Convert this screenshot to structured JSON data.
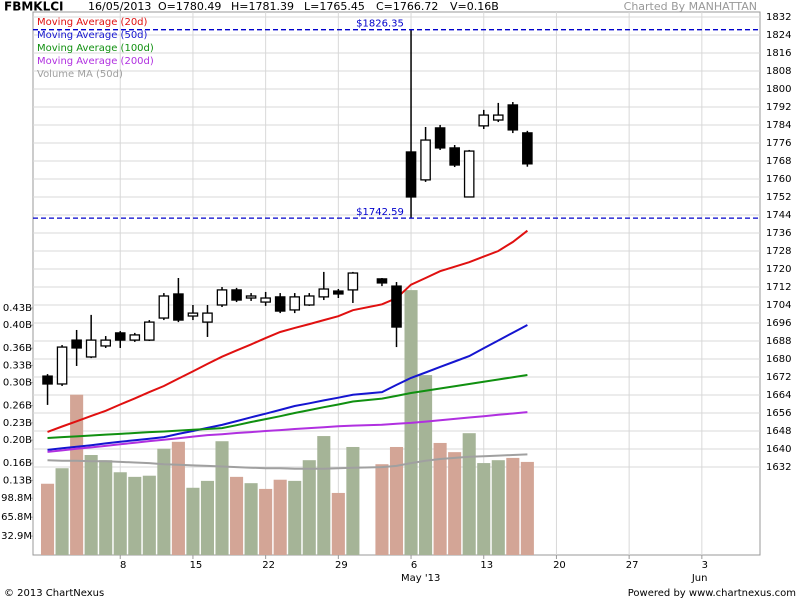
{
  "chart_data": {
    "type": "candlestick",
    "title": "FBMKLCI",
    "header_items": [
      "16/05/2013",
      "O=1780.49",
      "H=1781.39",
      "L=1765.45",
      "C=1766.72",
      "V=0.16B"
    ],
    "credit": "Charted By MANHATTAN",
    "footer_left": "© 2013 ChartNexus",
    "footer_right": "Powered by www.chartnexus.com",
    "x": [
      "2013-04-01",
      "2013-04-02",
      "2013-04-03",
      "2013-04-04",
      "2013-04-05",
      "2013-04-08",
      "2013-04-09",
      "2013-04-10",
      "2013-04-11",
      "2013-04-12",
      "2013-04-15",
      "2013-04-16",
      "2013-04-17",
      "2013-04-18",
      "2013-04-19",
      "2013-04-22",
      "2013-04-23",
      "2013-04-24",
      "2013-04-25",
      "2013-04-26",
      "2013-04-29",
      "2013-04-30",
      "2013-05-02",
      "2013-05-03",
      "2013-05-06",
      "2013-05-07",
      "2013-05-08",
      "2013-05-09",
      "2013-05-10",
      "2013-05-13",
      "2013-05-14",
      "2013-05-15",
      "2013-05-16"
    ],
    "open": [
      1672.4,
      1668.9,
      1688.4,
      1680.9,
      1685.8,
      1691.6,
      1688.4,
      1688.4,
      1698.2,
      1708.9,
      1699.1,
      1696.4,
      1704.0,
      1710.7,
      1707.1,
      1705.3,
      1707.6,
      1701.8,
      1704.0,
      1707.6,
      1710.2,
      1710.7,
      1715.6,
      1712.4,
      1772.0,
      1759.6,
      1782.7,
      1773.8,
      1752.0,
      1783.6,
      1786.2,
      1792.9,
      1780.49
    ],
    "high": [
      1673.3,
      1686.2,
      1692.9,
      1699.6,
      1690.2,
      1692.4,
      1691.6,
      1697.3,
      1709.3,
      1716.0,
      1704.0,
      1704.0,
      1712.0,
      1711.6,
      1709.3,
      1709.8,
      1709.3,
      1709.3,
      1709.3,
      1718.7,
      1711.1,
      1718.7,
      1716.0,
      1714.2,
      1826.35,
      1783.1,
      1784.0,
      1775.1,
      1772.9,
      1790.7,
      1793.8,
      1794.2,
      1781.39
    ],
    "low": [
      1659.6,
      1668.0,
      1676.9,
      1680.4,
      1684.9,
      1684.9,
      1687.6,
      1688.0,
      1697.3,
      1696.4,
      1697.3,
      1689.8,
      1703.1,
      1705.3,
      1705.8,
      1703.6,
      1700.4,
      1700.4,
      1703.6,
      1706.2,
      1707.1,
      1704.9,
      1712.4,
      1685.3,
      1742.59,
      1758.7,
      1772.9,
      1765.3,
      1752.0,
      1782.2,
      1785.3,
      1780.4,
      1765.45
    ],
    "close": [
      1668.9,
      1685.3,
      1684.9,
      1688.4,
      1688.4,
      1688.4,
      1690.7,
      1696.4,
      1708.0,
      1697.3,
      1700.4,
      1700.4,
      1710.7,
      1706.2,
      1708.0,
      1707.1,
      1701.3,
      1707.6,
      1708.0,
      1711.1,
      1708.9,
      1718.2,
      1713.8,
      1694.2,
      1752.0,
      1777.3,
      1773.8,
      1766.2,
      1772.4,
      1788.4,
      1788.4,
      1781.8,
      1766.72
    ],
    "up_color": "#ffffff",
    "down_color": "#000000",
    "volume": [
      124000000,
      151000000,
      279000000,
      174000000,
      165000000,
      144000000,
      136000000,
      138000000,
      185000000,
      197000000,
      117000000,
      129000000,
      198000000,
      136000000,
      125000000,
      115000000,
      131000000,
      129000000,
      165000000,
      207000000,
      108000000,
      188000000,
      158000000,
      188000000,
      461000000,
      313000000,
      195000000,
      179000000,
      212000000,
      160000000,
      165000000,
      169000000,
      162000000
    ],
    "volume_up_color": "#a5b497",
    "volume_down_color": "#d3a596",
    "series": [
      {
        "name": "Moving Average (20d)",
        "color": "#e01010",
        "values": [
          1647.6,
          1650,
          1652.3,
          1654.7,
          1657,
          1659.8,
          1662.5,
          1665.3,
          1668,
          1671.3,
          1674.5,
          1677.8,
          1681,
          1683.8,
          1686.5,
          1689.3,
          1692,
          1693.8,
          1695.5,
          1697.3,
          1699,
          1701.7,
          1704.3,
          1707,
          1713,
          1716,
          1719,
          1721,
          1723,
          1725.5,
          1728,
          1732,
          1737
        ]
      },
      {
        "name": "Moving Average (50d)",
        "color": "#1515d0",
        "values": [
          1639.6,
          1640.3,
          1641,
          1641.7,
          1642.5,
          1643.2,
          1643.9,
          1644.6,
          1645.3,
          1646.7,
          1648,
          1649.4,
          1650.7,
          1652.4,
          1654.1,
          1655.7,
          1657.4,
          1659.1,
          1660.3,
          1661.6,
          1662.8,
          1664.1,
          1665.3,
          1668.5,
          1671.6,
          1674,
          1676.5,
          1678.9,
          1681.3,
          1684.8,
          1688.2,
          1691.7,
          1695.1
        ]
      },
      {
        "name": "Moving Average (100d)",
        "color": "#109010",
        "values": [
          1644.9,
          1645.3,
          1645.6,
          1646,
          1646.4,
          1646.7,
          1647.1,
          1647.5,
          1647.8,
          1648.2,
          1648.6,
          1648.9,
          1649.3,
          1650.6,
          1652,
          1653.3,
          1654.6,
          1656,
          1657.3,
          1658.6,
          1659.8,
          1661.1,
          1662.4,
          1663.6,
          1664.9,
          1665.9,
          1666.9,
          1667.9,
          1668.9,
          1669.9,
          1670.9,
          1671.9,
          1672.9
        ]
      },
      {
        "name": "Moving Average (200d)",
        "color": "#b030e0",
        "values": [
          1638.7,
          1639.4,
          1640.1,
          1640.7,
          1641.4,
          1642.1,
          1642.8,
          1643.5,
          1644.1,
          1644.8,
          1645.5,
          1646.2,
          1646.6,
          1647.1,
          1647.5,
          1648,
          1648.4,
          1648.9,
          1649.3,
          1649.7,
          1650.1,
          1650.4,
          1650.8,
          1651.2,
          1651.6,
          1652.2,
          1652.8,
          1653.4,
          1654,
          1654.6,
          1655.2,
          1655.8,
          1656.4
        ]
      },
      {
        "name": "Volume MA (50d)",
        "color": "#a0a0a0",
        "axis": "y2",
        "values": [
          165000000,
          164000000,
          164000000,
          163000000,
          163000000,
          162000000,
          161000000,
          160000000,
          158000000,
          157000000,
          156000000,
          155000000,
          154000000,
          153000000,
          152000000,
          151000000,
          151000000,
          150000000,
          150000000,
          150000000,
          151000000,
          152000000,
          153000000,
          155000000,
          160000000,
          164000000,
          167000000,
          169000000,
          171000000,
          172000000,
          173000000,
          174000000,
          175000000
        ]
      }
    ],
    "levels": [
      {
        "value": 1826.35,
        "label": "$1826.35"
      },
      {
        "value": 1742.59,
        "label": "$1742.59"
      }
    ],
    "level_color": "#0000cc",
    "xlim": [
      "2013-03-29",
      "2013-06-07"
    ],
    "xticks": [
      {
        "value": "2013-04-08",
        "label": "8"
      },
      {
        "value": "2013-04-15",
        "label": "15"
      },
      {
        "value": "2013-04-22",
        "label": "22"
      },
      {
        "value": "2013-04-29",
        "label": "29"
      },
      {
        "value": "2013-05-06",
        "label": "6"
      },
      {
        "value": "2013-05-13",
        "label": "13"
      },
      {
        "value": "2013-05-20",
        "label": "20"
      },
      {
        "value": "2013-05-27",
        "label": "27"
      },
      {
        "value": "2013-06-03",
        "label": "3"
      }
    ],
    "x_period_labels": [
      {
        "value": "2013-05-06",
        "label": "May '13"
      },
      {
        "value": "2013-06-03",
        "label": "Jun"
      }
    ],
    "ylim": [
      1592.9,
      1834.2
    ],
    "yticks": [
      1632,
      1640,
      1648,
      1656,
      1664,
      1672,
      1680,
      1688,
      1696,
      1704,
      1712,
      1720,
      1728,
      1736,
      1744,
      1752,
      1760,
      1768,
      1776,
      1784,
      1792,
      1800,
      1808,
      1816,
      1824,
      1832
    ],
    "y2lim": [
      0,
      945000000
    ],
    "y2ticks": [
      {
        "value": 32900000,
        "label": "32.9M"
      },
      {
        "value": 65800000,
        "label": "65.8M"
      },
      {
        "value": 98800000,
        "label": "98.8M"
      },
      {
        "value": 130000000,
        "label": "0.13B"
      },
      {
        "value": 160000000,
        "label": "0.16B"
      },
      {
        "value": 200000000,
        "label": "0.20B"
      },
      {
        "value": 230000000,
        "label": "0.23B"
      },
      {
        "value": 260000000,
        "label": "0.26B"
      },
      {
        "value": 300000000,
        "label": "0.30B"
      },
      {
        "value": 330000000,
        "label": "0.33B"
      },
      {
        "value": 360000000,
        "label": "0.36B"
      },
      {
        "value": 400000000,
        "label": "0.40B"
      },
      {
        "value": 430000000,
        "label": "0.43B"
      }
    ],
    "grid": true
  }
}
